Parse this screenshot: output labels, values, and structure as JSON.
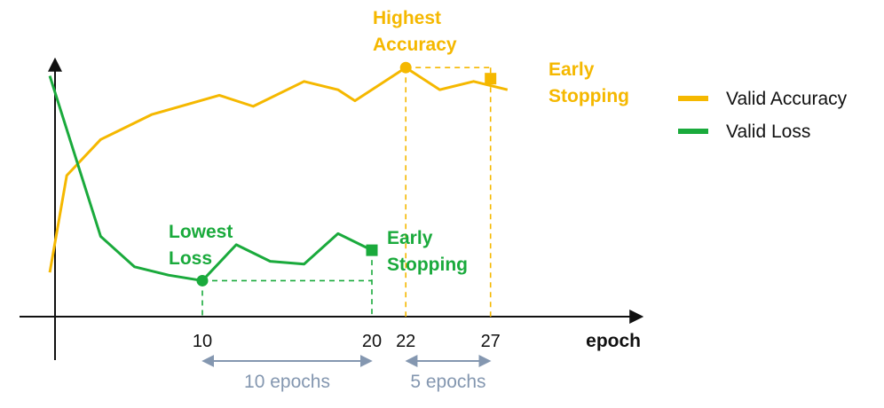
{
  "chart_data": {
    "type": "line",
    "xlabel": "epoch",
    "xticks": [
      10,
      20,
      22,
      27
    ],
    "series": [
      {
        "name": "Valid Accuracy",
        "color": "#f5b800",
        "x": [
          1,
          2,
          4,
          7,
          11,
          13,
          16,
          18,
          19,
          22,
          24,
          26,
          28
        ],
        "y": [
          0.16,
          0.51,
          0.64,
          0.73,
          0.8,
          0.76,
          0.85,
          0.82,
          0.78,
          0.9,
          0.82,
          0.85,
          0.82
        ]
      },
      {
        "name": "Valid Loss",
        "color": "#1aaa3c",
        "x": [
          1,
          4,
          6,
          8,
          10,
          12,
          14,
          16,
          18,
          20
        ],
        "y": [
          0.87,
          0.29,
          0.18,
          0.15,
          0.13,
          0.26,
          0.2,
          0.19,
          0.3,
          0.24
        ]
      }
    ],
    "annotations": {
      "highest_accuracy": {
        "label_lines": [
          "Highest",
          "Accuracy"
        ],
        "epoch": 22,
        "value": 0.9
      },
      "early_stopping_accuracy": {
        "label_lines": [
          "Early",
          "Stopping"
        ],
        "epoch": 27,
        "value": 0.86
      },
      "lowest_loss": {
        "label_lines": [
          "Lowest",
          "Loss"
        ],
        "epoch": 10,
        "value": 0.13
      },
      "early_stopping_loss": {
        "label_lines": [
          "Early",
          "Stopping"
        ],
        "epoch": 20,
        "value": 0.24
      }
    },
    "spans": [
      {
        "from": 10,
        "to": 20,
        "label": "10 epochs"
      },
      {
        "from": 22,
        "to": 27,
        "label": "5 epochs"
      }
    ],
    "legend_position": "top-right",
    "grid": false
  }
}
